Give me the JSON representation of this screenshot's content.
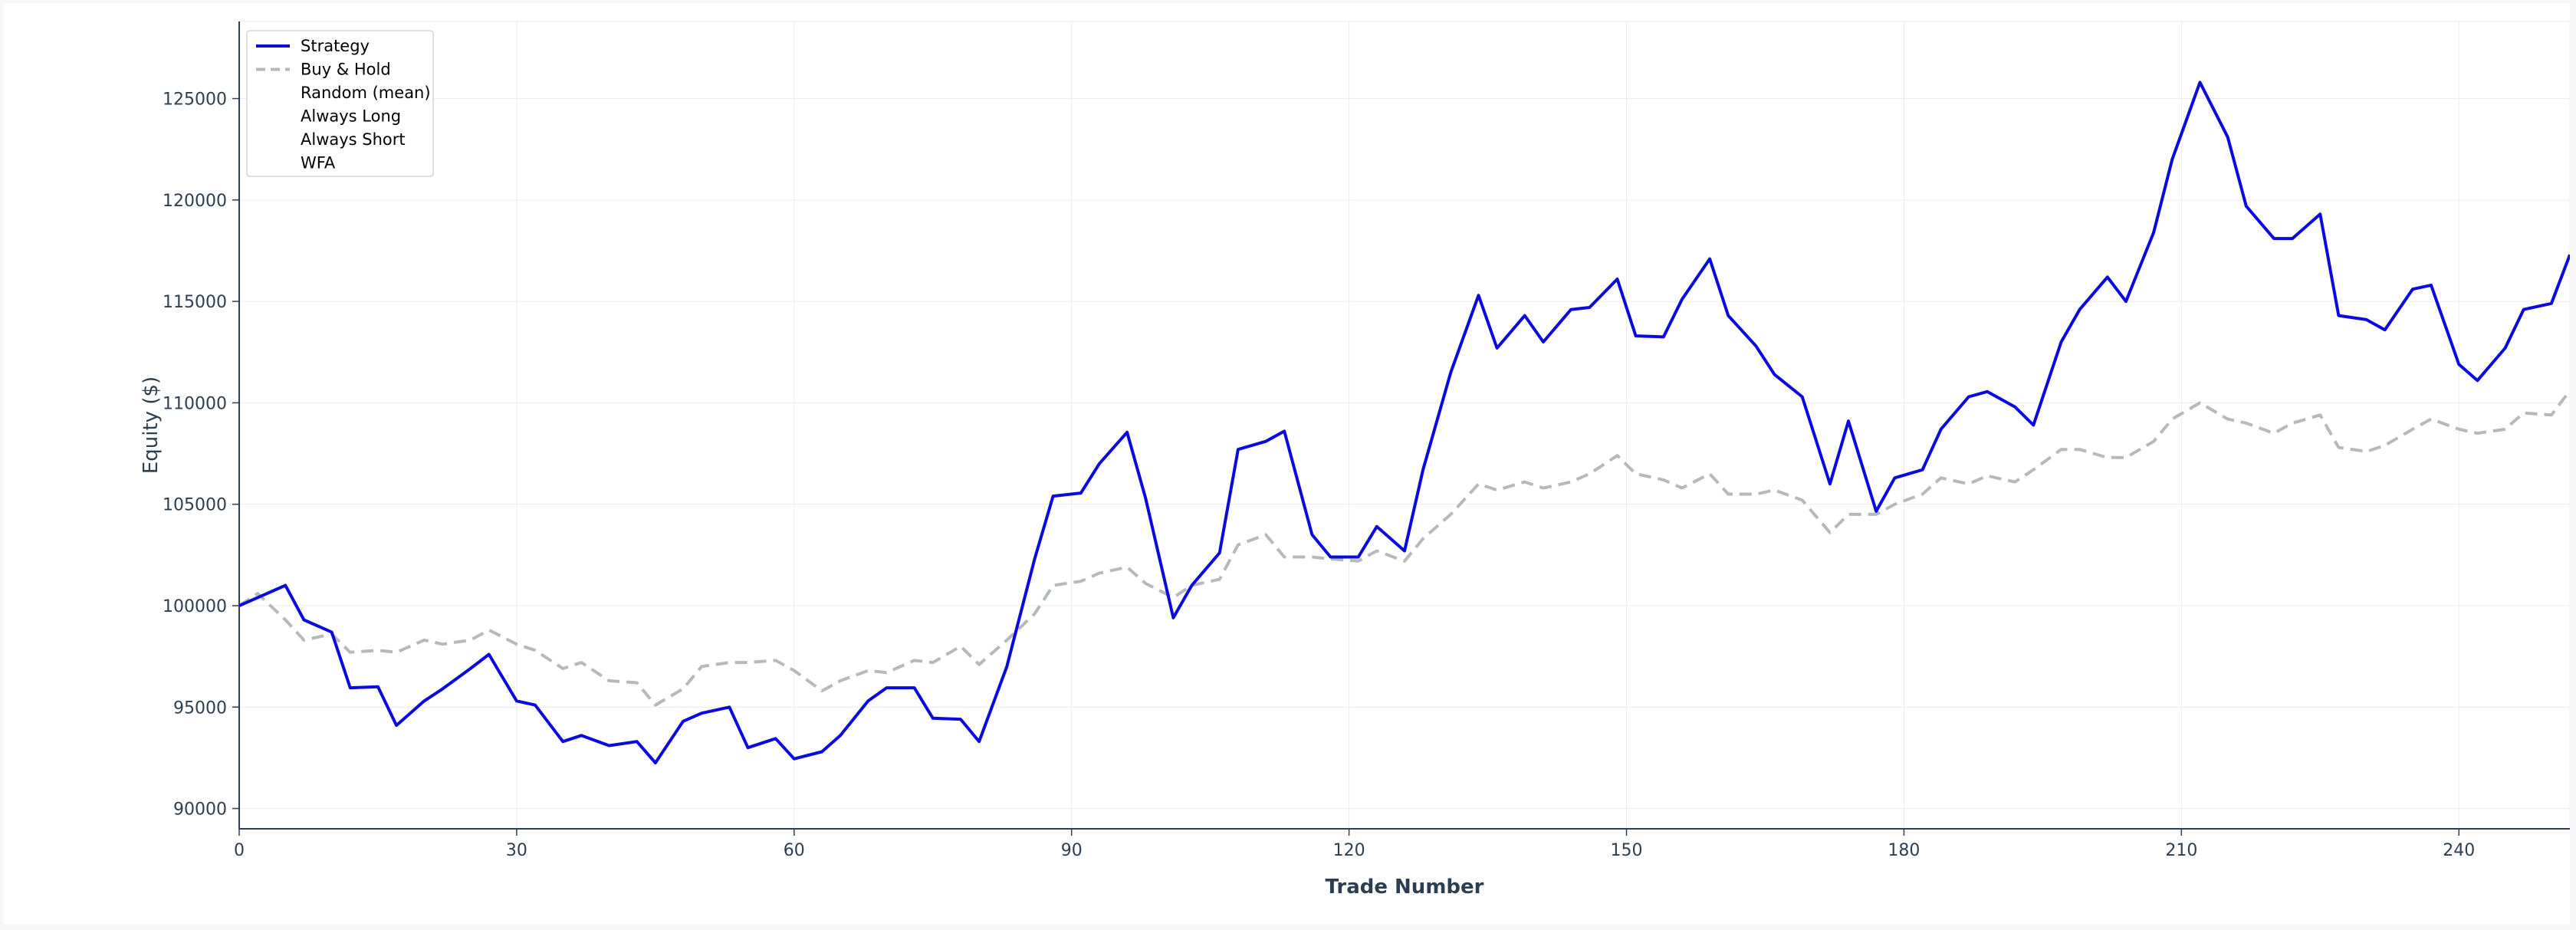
{
  "colors": {
    "strategy": "#0a0adf",
    "buy_hold": "#b4b9be",
    "grid": "#ececec",
    "axis": "#2c3e50"
  },
  "chart_data": {
    "type": "line",
    "title": "",
    "xlabel": "Trade Number",
    "ylabel": "Equity ($)",
    "xlim": [
      0,
      252
    ],
    "ylim": [
      89000,
      128800
    ],
    "x_ticks": [
      0,
      30,
      60,
      90,
      120,
      150,
      180,
      210,
      240
    ],
    "y_ticks": [
      90000,
      95000,
      100000,
      105000,
      110000,
      115000,
      120000,
      125000
    ],
    "grid": true,
    "legend_position": "top-left",
    "legend": [
      "Strategy",
      "Buy & Hold",
      "Random (mean)",
      "Always Long",
      "Always Short",
      "WFA"
    ],
    "series": [
      {
        "name": "Strategy",
        "style": "solid",
        "points": [
          [
            0,
            100000
          ],
          [
            2,
            100400
          ],
          [
            5,
            101000
          ],
          [
            7,
            99300
          ],
          [
            10,
            98700
          ],
          [
            12,
            95950
          ],
          [
            15,
            96000
          ],
          [
            17,
            94100
          ],
          [
            20,
            95300
          ],
          [
            22,
            95900
          ],
          [
            25,
            96900
          ],
          [
            27,
            97600
          ],
          [
            30,
            95300
          ],
          [
            32,
            95100
          ],
          [
            35,
            93300
          ],
          [
            37,
            93600
          ],
          [
            40,
            93100
          ],
          [
            43,
            93300
          ],
          [
            45,
            92250
          ],
          [
            48,
            94300
          ],
          [
            50,
            94700
          ],
          [
            53,
            95000
          ],
          [
            55,
            93000
          ],
          [
            58,
            93450
          ],
          [
            60,
            92450
          ],
          [
            63,
            92800
          ],
          [
            65,
            93600
          ],
          [
            68,
            95300
          ],
          [
            70,
            95950
          ],
          [
            73,
            95950
          ],
          [
            75,
            94450
          ],
          [
            78,
            94400
          ],
          [
            80,
            93300
          ],
          [
            83,
            97000
          ],
          [
            86,
            102300
          ],
          [
            88,
            105400
          ],
          [
            91,
            105550
          ],
          [
            93,
            107000
          ],
          [
            96,
            108550
          ],
          [
            98,
            105300
          ],
          [
            101,
            99400
          ],
          [
            103,
            101000
          ],
          [
            106,
            102600
          ],
          [
            108,
            107700
          ],
          [
            111,
            108100
          ],
          [
            113,
            108600
          ],
          [
            116,
            103500
          ],
          [
            118,
            102400
          ],
          [
            121,
            102400
          ],
          [
            123,
            103900
          ],
          [
            126,
            102700
          ],
          [
            128,
            106700
          ],
          [
            131,
            111500
          ],
          [
            134,
            115300
          ],
          [
            136,
            112700
          ],
          [
            139,
            114300
          ],
          [
            141,
            113000
          ],
          [
            144,
            114600
          ],
          [
            146,
            114700
          ],
          [
            149,
            116100
          ],
          [
            151,
            113300
          ],
          [
            154,
            113250
          ],
          [
            156,
            115100
          ],
          [
            159,
            117100
          ],
          [
            161,
            114300
          ],
          [
            164,
            112800
          ],
          [
            166,
            111400
          ],
          [
            169,
            110300
          ],
          [
            172,
            106000
          ],
          [
            174,
            109100
          ],
          [
            177,
            104650
          ],
          [
            179,
            106300
          ],
          [
            182,
            106700
          ],
          [
            184,
            108700
          ],
          [
            187,
            110300
          ],
          [
            189,
            110550
          ],
          [
            192,
            109800
          ],
          [
            194,
            108900
          ],
          [
            197,
            113000
          ],
          [
            199,
            114600
          ],
          [
            202,
            116200
          ],
          [
            204,
            115000
          ],
          [
            207,
            118400
          ],
          [
            209,
            122000
          ],
          [
            212,
            125800
          ],
          [
            215,
            123100
          ],
          [
            217,
            119700
          ],
          [
            220,
            118100
          ],
          [
            222,
            118100
          ],
          [
            225,
            119300
          ],
          [
            227,
            114300
          ],
          [
            230,
            114100
          ],
          [
            232,
            113600
          ],
          [
            235,
            115600
          ],
          [
            237,
            115800
          ],
          [
            240,
            111900
          ],
          [
            242,
            111100
          ],
          [
            245,
            112700
          ],
          [
            247,
            114600
          ],
          [
            250,
            114900
          ],
          [
            252,
            117300
          ]
        ]
      },
      {
        "name": "Buy & Hold",
        "style": "dashed",
        "points": [
          [
            0,
            100000
          ],
          [
            2,
            100600
          ],
          [
            5,
            99300
          ],
          [
            7,
            98300
          ],
          [
            10,
            98600
          ],
          [
            12,
            97700
          ],
          [
            15,
            97800
          ],
          [
            17,
            97700
          ],
          [
            20,
            98300
          ],
          [
            22,
            98100
          ],
          [
            25,
            98300
          ],
          [
            27,
            98800
          ],
          [
            30,
            98100
          ],
          [
            32,
            97800
          ],
          [
            35,
            96900
          ],
          [
            37,
            97200
          ],
          [
            40,
            96300
          ],
          [
            43,
            96200
          ],
          [
            45,
            95100
          ],
          [
            48,
            95900
          ],
          [
            50,
            97000
          ],
          [
            53,
            97200
          ],
          [
            55,
            97200
          ],
          [
            58,
            97300
          ],
          [
            60,
            96800
          ],
          [
            63,
            95800
          ],
          [
            65,
            96300
          ],
          [
            68,
            96800
          ],
          [
            70,
            96700
          ],
          [
            73,
            97300
          ],
          [
            75,
            97200
          ],
          [
            78,
            98000
          ],
          [
            80,
            97100
          ],
          [
            83,
            98300
          ],
          [
            86,
            99600
          ],
          [
            88,
            101000
          ],
          [
            91,
            101200
          ],
          [
            93,
            101600
          ],
          [
            96,
            101900
          ],
          [
            98,
            101100
          ],
          [
            101,
            100400
          ],
          [
            103,
            101000
          ],
          [
            106,
            101300
          ],
          [
            108,
            103000
          ],
          [
            111,
            103500
          ],
          [
            113,
            102400
          ],
          [
            116,
            102400
          ],
          [
            118,
            102300
          ],
          [
            121,
            102200
          ],
          [
            123,
            102700
          ],
          [
            126,
            102200
          ],
          [
            128,
            103300
          ],
          [
            131,
            104500
          ],
          [
            134,
            106000
          ],
          [
            136,
            105700
          ],
          [
            139,
            106100
          ],
          [
            141,
            105800
          ],
          [
            144,
            106100
          ],
          [
            146,
            106500
          ],
          [
            149,
            107400
          ],
          [
            151,
            106500
          ],
          [
            154,
            106200
          ],
          [
            156,
            105800
          ],
          [
            159,
            106500
          ],
          [
            161,
            105500
          ],
          [
            164,
            105500
          ],
          [
            166,
            105700
          ],
          [
            169,
            105200
          ],
          [
            172,
            103600
          ],
          [
            174,
            104500
          ],
          [
            177,
            104500
          ],
          [
            179,
            105000
          ],
          [
            182,
            105500
          ],
          [
            184,
            106300
          ],
          [
            187,
            106000
          ],
          [
            189,
            106400
          ],
          [
            192,
            106100
          ],
          [
            194,
            106700
          ],
          [
            197,
            107700
          ],
          [
            199,
            107700
          ],
          [
            202,
            107300
          ],
          [
            204,
            107300
          ],
          [
            207,
            108100
          ],
          [
            209,
            109200
          ],
          [
            212,
            110000
          ],
          [
            215,
            109200
          ],
          [
            217,
            109000
          ],
          [
            220,
            108500
          ],
          [
            222,
            109000
          ],
          [
            225,
            109400
          ],
          [
            227,
            107800
          ],
          [
            230,
            107600
          ],
          [
            232,
            107900
          ],
          [
            235,
            108700
          ],
          [
            237,
            109200
          ],
          [
            240,
            108700
          ],
          [
            242,
            108500
          ],
          [
            245,
            108700
          ],
          [
            247,
            109500
          ],
          [
            250,
            109400
          ],
          [
            252,
            110600
          ]
        ]
      }
    ]
  }
}
